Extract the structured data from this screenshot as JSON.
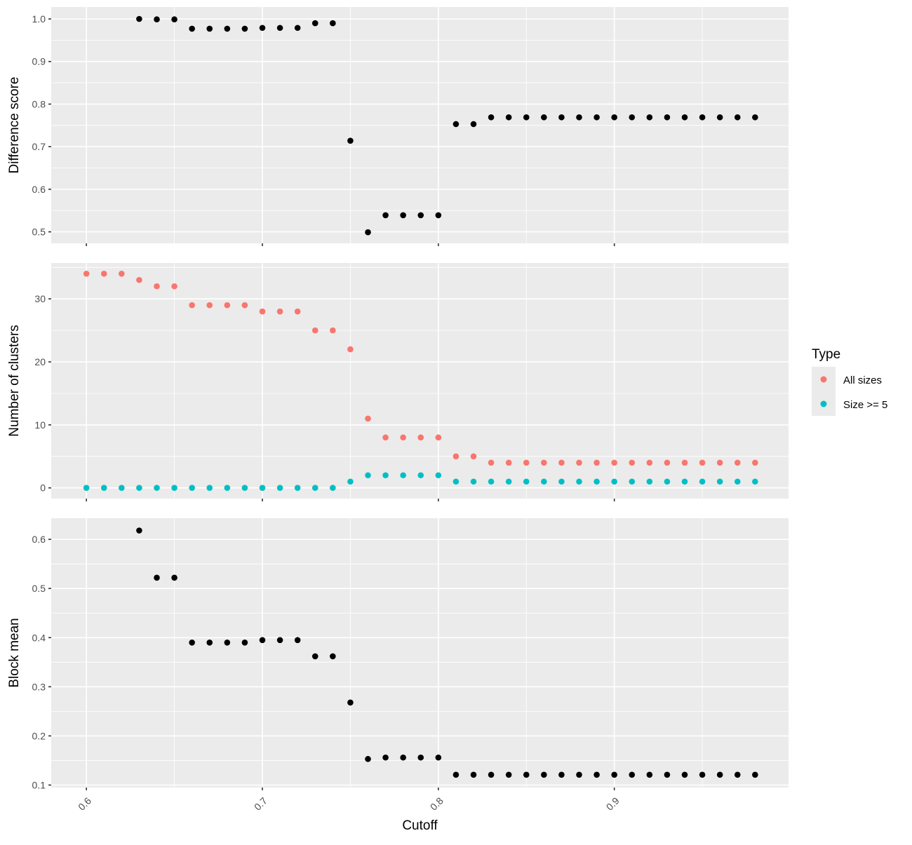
{
  "chart_data": [
    {
      "type": "scatter",
      "panel": "top",
      "xlabel": "",
      "ylabel": "Difference score",
      "xlim": [
        0.58,
        0.999
      ],
      "ylim": [
        0.473,
        1.028
      ],
      "y_ticks": [
        0.5,
        0.6,
        0.7,
        0.8,
        0.9,
        1.0
      ],
      "y_tick_labels": [
        "0.5",
        "0.6",
        "0.7",
        "0.8",
        "0.9",
        "1.0"
      ],
      "x_ticks": [
        0.6,
        0.7,
        0.8,
        0.9
      ],
      "show_x_tick_labels": false,
      "grid": true,
      "series": [
        {
          "color": "#000000",
          "points": [
            [
              0.63,
              1.0
            ],
            [
              0.64,
              0.999
            ],
            [
              0.65,
              0.999
            ],
            [
              0.66,
              0.977
            ],
            [
              0.67,
              0.977
            ],
            [
              0.68,
              0.977
            ],
            [
              0.69,
              0.977
            ],
            [
              0.7,
              0.979
            ],
            [
              0.71,
              0.979
            ],
            [
              0.72,
              0.979
            ],
            [
              0.73,
              0.99
            ],
            [
              0.74,
              0.99
            ],
            [
              0.75,
              0.714
            ],
            [
              0.76,
              0.499
            ],
            [
              0.77,
              0.539
            ],
            [
              0.78,
              0.539
            ],
            [
              0.79,
              0.539
            ],
            [
              0.8,
              0.539
            ],
            [
              0.81,
              0.753
            ],
            [
              0.82,
              0.753
            ],
            [
              0.83,
              0.769
            ],
            [
              0.84,
              0.769
            ],
            [
              0.85,
              0.769
            ],
            [
              0.86,
              0.769
            ],
            [
              0.87,
              0.769
            ],
            [
              0.88,
              0.769
            ],
            [
              0.89,
              0.769
            ],
            [
              0.9,
              0.769
            ],
            [
              0.91,
              0.769
            ],
            [
              0.92,
              0.769
            ],
            [
              0.93,
              0.769
            ],
            [
              0.94,
              0.769
            ],
            [
              0.95,
              0.769
            ],
            [
              0.96,
              0.769
            ],
            [
              0.97,
              0.769
            ],
            [
              0.98,
              0.769
            ]
          ]
        }
      ]
    },
    {
      "type": "scatter",
      "panel": "middle",
      "xlabel": "",
      "ylabel": "Number of clusters",
      "xlim": [
        0.58,
        0.999
      ],
      "ylim": [
        -1.7,
        35.7
      ],
      "y_ticks": [
        0,
        10,
        20,
        30
      ],
      "y_tick_labels": [
        "0",
        "10",
        "20",
        "30"
      ],
      "x_ticks": [
        0.6,
        0.7,
        0.8,
        0.9
      ],
      "show_x_tick_labels": false,
      "grid": true,
      "series": [
        {
          "name": "All sizes",
          "color": "#F8766D",
          "points": [
            [
              0.6,
              34
            ],
            [
              0.61,
              34
            ],
            [
              0.62,
              34
            ],
            [
              0.63,
              33
            ],
            [
              0.64,
              32
            ],
            [
              0.65,
              32
            ],
            [
              0.66,
              29
            ],
            [
              0.67,
              29
            ],
            [
              0.68,
              29
            ],
            [
              0.69,
              29
            ],
            [
              0.7,
              28
            ],
            [
              0.71,
              28
            ],
            [
              0.72,
              28
            ],
            [
              0.73,
              25
            ],
            [
              0.74,
              25
            ],
            [
              0.75,
              22
            ],
            [
              0.76,
              11
            ],
            [
              0.77,
              8
            ],
            [
              0.78,
              8
            ],
            [
              0.79,
              8
            ],
            [
              0.8,
              8
            ],
            [
              0.81,
              5
            ],
            [
              0.82,
              5
            ],
            [
              0.83,
              4
            ],
            [
              0.84,
              4
            ],
            [
              0.85,
              4
            ],
            [
              0.86,
              4
            ],
            [
              0.87,
              4
            ],
            [
              0.88,
              4
            ],
            [
              0.89,
              4
            ],
            [
              0.9,
              4
            ],
            [
              0.91,
              4
            ],
            [
              0.92,
              4
            ],
            [
              0.93,
              4
            ],
            [
              0.94,
              4
            ],
            [
              0.95,
              4
            ],
            [
              0.96,
              4
            ],
            [
              0.97,
              4
            ],
            [
              0.98,
              4
            ]
          ]
        },
        {
          "name": "Size >= 5",
          "color": "#00BFC4",
          "points": [
            [
              0.6,
              0
            ],
            [
              0.61,
              0
            ],
            [
              0.62,
              0
            ],
            [
              0.63,
              0
            ],
            [
              0.64,
              0
            ],
            [
              0.65,
              0
            ],
            [
              0.66,
              0
            ],
            [
              0.67,
              0
            ],
            [
              0.68,
              0
            ],
            [
              0.69,
              0
            ],
            [
              0.7,
              0
            ],
            [
              0.71,
              0
            ],
            [
              0.72,
              0
            ],
            [
              0.73,
              0
            ],
            [
              0.74,
              0
            ],
            [
              0.75,
              1
            ],
            [
              0.76,
              2
            ],
            [
              0.77,
              2
            ],
            [
              0.78,
              2
            ],
            [
              0.79,
              2
            ],
            [
              0.8,
              2
            ],
            [
              0.81,
              1
            ],
            [
              0.82,
              1
            ],
            [
              0.83,
              1
            ],
            [
              0.84,
              1
            ],
            [
              0.85,
              1
            ],
            [
              0.86,
              1
            ],
            [
              0.87,
              1
            ],
            [
              0.88,
              1
            ],
            [
              0.89,
              1
            ],
            [
              0.9,
              1
            ],
            [
              0.91,
              1
            ],
            [
              0.92,
              1
            ],
            [
              0.93,
              1
            ],
            [
              0.94,
              1
            ],
            [
              0.95,
              1
            ],
            [
              0.96,
              1
            ],
            [
              0.97,
              1
            ],
            [
              0.98,
              1
            ]
          ]
        }
      ]
    },
    {
      "type": "scatter",
      "panel": "bottom",
      "xlabel": "Cutoff",
      "ylabel": "Block mean",
      "xlim": [
        0.58,
        0.999
      ],
      "ylim": [
        0.095,
        0.643
      ],
      "y_ticks": [
        0.1,
        0.2,
        0.3,
        0.4,
        0.5,
        0.6
      ],
      "y_tick_labels": [
        "0.1",
        "0.2",
        "0.3",
        "0.4",
        "0.5",
        "0.6"
      ],
      "x_ticks": [
        0.6,
        0.7,
        0.8,
        0.9
      ],
      "x_tick_labels": [
        "0.6",
        "0.7",
        "0.8",
        "0.9"
      ],
      "show_x_tick_labels": true,
      "grid": true,
      "series": [
        {
          "color": "#000000",
          "points": [
            [
              0.63,
              0.618
            ],
            [
              0.64,
              0.522
            ],
            [
              0.65,
              0.522
            ],
            [
              0.66,
              0.39
            ],
            [
              0.67,
              0.39
            ],
            [
              0.68,
              0.39
            ],
            [
              0.69,
              0.39
            ],
            [
              0.7,
              0.395
            ],
            [
              0.71,
              0.395
            ],
            [
              0.72,
              0.395
            ],
            [
              0.73,
              0.362
            ],
            [
              0.74,
              0.362
            ],
            [
              0.75,
              0.268
            ],
            [
              0.76,
              0.153
            ],
            [
              0.77,
              0.156
            ],
            [
              0.78,
              0.156
            ],
            [
              0.79,
              0.156
            ],
            [
              0.8,
              0.156
            ],
            [
              0.81,
              0.121
            ],
            [
              0.82,
              0.121
            ],
            [
              0.83,
              0.121
            ],
            [
              0.84,
              0.121
            ],
            [
              0.85,
              0.121
            ],
            [
              0.86,
              0.121
            ],
            [
              0.87,
              0.121
            ],
            [
              0.88,
              0.121
            ],
            [
              0.89,
              0.121
            ],
            [
              0.9,
              0.121
            ],
            [
              0.91,
              0.121
            ],
            [
              0.92,
              0.121
            ],
            [
              0.93,
              0.121
            ],
            [
              0.94,
              0.121
            ],
            [
              0.95,
              0.121
            ],
            [
              0.96,
              0.121
            ],
            [
              0.97,
              0.121
            ],
            [
              0.98,
              0.121
            ]
          ]
        }
      ]
    }
  ],
  "legend": {
    "title": "Type",
    "placement": "right",
    "items": [
      {
        "label": "All sizes",
        "color": "#F8766D"
      },
      {
        "label": "Size >= 5",
        "color": "#00BFC4"
      }
    ]
  }
}
